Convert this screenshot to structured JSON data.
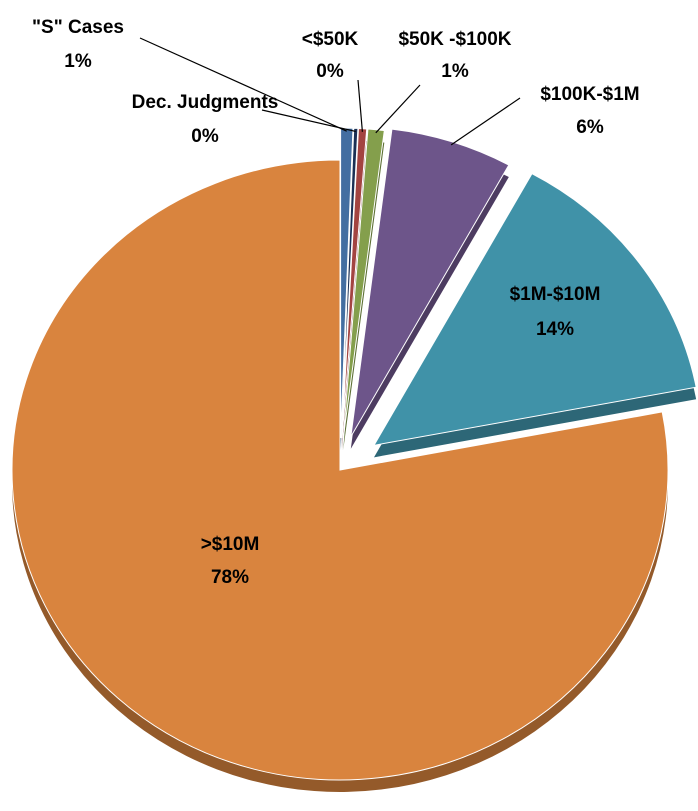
{
  "chart_data": {
    "type": "pie",
    "categories": [
      "\"S\" Cases",
      "Dec. Judgments",
      "<$50K",
      "$50K -$100K",
      "$100K-$1M",
      "$1M-$10M",
      ">$10M"
    ],
    "values": [
      0.6,
      0.2,
      0.4,
      0.8,
      6,
      14,
      78
    ],
    "value_labels": [
      "1%",
      "0%",
      "0%",
      "1%",
      "6%",
      "14%",
      "78%"
    ],
    "colors": [
      "#4f81bd",
      "#1f3864",
      "#c0504d",
      "#9bbb59",
      "#8064a2",
      "#4bacc6",
      "#f79646"
    ]
  }
}
